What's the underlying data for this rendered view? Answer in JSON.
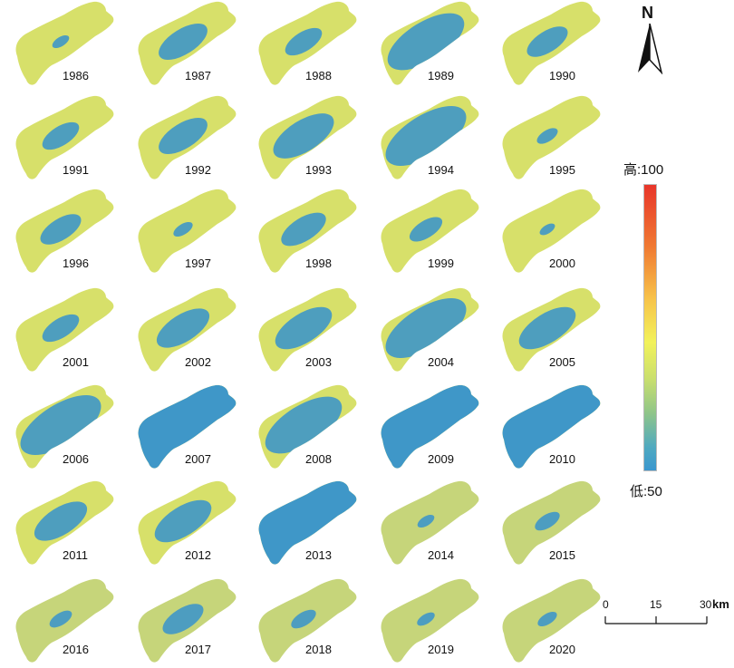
{
  "north_arrow": {
    "label": "N",
    "icon": "north-arrow-icon"
  },
  "legend": {
    "high": "高:100",
    "low": "低:50",
    "colors": [
      "#e8352a",
      "#f07b33",
      "#f7c34a",
      "#f2f25a",
      "#c9df6e",
      "#8fc589",
      "#4fa9c0",
      "#3a97cf"
    ]
  },
  "scale_bar": {
    "ticks": [
      "0",
      "15",
      "30"
    ],
    "unit": "km"
  },
  "panels": [
    {
      "year": "1986",
      "blue": 0.05
    },
    {
      "year": "1987",
      "blue": 0.45
    },
    {
      "year": "1988",
      "blue": 0.3
    },
    {
      "year": "1989",
      "blue": 0.8
    },
    {
      "year": "1990",
      "blue": 0.35
    },
    {
      "year": "1991",
      "blue": 0.3
    },
    {
      "year": "1992",
      "blue": 0.45
    },
    {
      "year": "1993",
      "blue": 0.6
    },
    {
      "year": "1994",
      "blue": 0.85
    },
    {
      "year": "1995",
      "blue": 0.1
    },
    {
      "year": "1996",
      "blue": 0.35
    },
    {
      "year": "1997",
      "blue": 0.08
    },
    {
      "year": "1998",
      "blue": 0.4
    },
    {
      "year": "1999",
      "blue": 0.25
    },
    {
      "year": "2000",
      "blue": 0.03
    },
    {
      "year": "2001",
      "blue": 0.3
    },
    {
      "year": "2002",
      "blue": 0.5
    },
    {
      "year": "2003",
      "blue": 0.55
    },
    {
      "year": "2004",
      "blue": 0.85
    },
    {
      "year": "2005",
      "blue": 0.55
    },
    {
      "year": "2006",
      "blue": 0.85
    },
    {
      "year": "2007",
      "blue": 0.98
    },
    {
      "year": "2008",
      "blue": 0.8
    },
    {
      "year": "2009",
      "blue": 0.98
    },
    {
      "year": "2010",
      "blue": 0.98
    },
    {
      "year": "2011",
      "blue": 0.5
    },
    {
      "year": "2012",
      "blue": 0.55
    },
    {
      "year": "2013",
      "blue": 1.0
    },
    {
      "year": "2014",
      "blue": 0.05
    },
    {
      "year": "2015",
      "blue": 0.15
    },
    {
      "year": "2016",
      "blue": 0.12
    },
    {
      "year": "2017",
      "blue": 0.35
    },
    {
      "year": "2018",
      "blue": 0.15
    },
    {
      "year": "2019",
      "blue": 0.06
    },
    {
      "year": "2020",
      "blue": 0.08
    }
  ]
}
